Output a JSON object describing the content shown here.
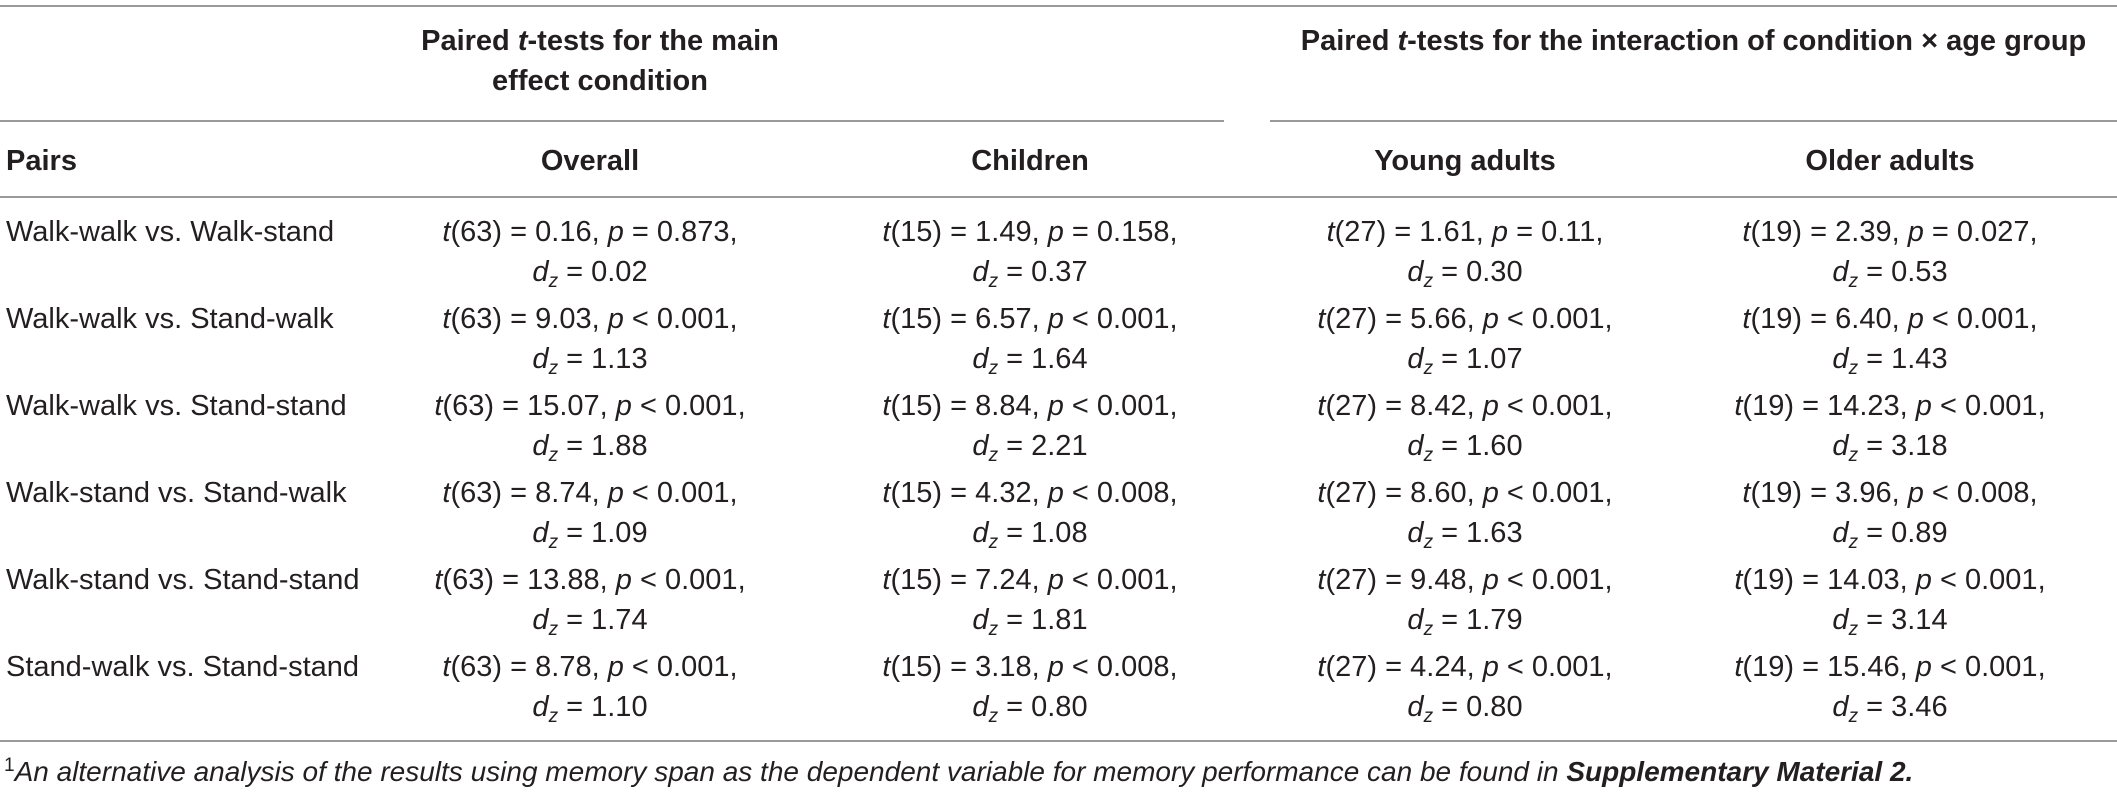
{
  "header": {
    "main_effect_title_line1": "Paired t-tests for the main",
    "main_effect_title_line2": "effect condition",
    "interaction_title": "Paired t-tests for the interaction of condition × age group"
  },
  "columns": {
    "pairs": "Pairs",
    "overall": "Overall",
    "children": "Children",
    "young": "Young adults",
    "older": "Older adults"
  },
  "rows": [
    {
      "pair": "Walk-walk vs. Walk-stand",
      "overall": {
        "df": "63",
        "t": "0.16",
        "p_op": "=",
        "p": "0.873",
        "dz": "0.02"
      },
      "children": {
        "df": "15",
        "t": "1.49",
        "p_op": "=",
        "p": "0.158",
        "dz": "0.37"
      },
      "young": {
        "df": "27",
        "t": "1.61",
        "p_op": "=",
        "p": "0.11",
        "dz": "0.30"
      },
      "older": {
        "df": "19",
        "t": "2.39",
        "p_op": "=",
        "p": "0.027",
        "dz": "0.53"
      }
    },
    {
      "pair": "Walk-walk vs. Stand-walk",
      "overall": {
        "df": "63",
        "t": "9.03",
        "p_op": "<",
        "p": "0.001",
        "dz": "1.13"
      },
      "children": {
        "df": "15",
        "t": "6.57",
        "p_op": "<",
        "p": "0.001",
        "dz": "1.64"
      },
      "young": {
        "df": "27",
        "t": "5.66",
        "p_op": "<",
        "p": "0.001",
        "dz": "1.07"
      },
      "older": {
        "df": "19",
        "t": "6.40",
        "p_op": "<",
        "p": "0.001",
        "dz": "1.43"
      }
    },
    {
      "pair": "Walk-walk vs. Stand-stand",
      "overall": {
        "df": "63",
        "t": "15.07",
        "p_op": "<",
        "p": "0.001",
        "dz": "1.88"
      },
      "children": {
        "df": "15",
        "t": "8.84",
        "p_op": "<",
        "p": "0.001",
        "dz": "2.21"
      },
      "young": {
        "df": "27",
        "t": "8.42",
        "p_op": "<",
        "p": "0.001",
        "dz": "1.60"
      },
      "older": {
        "df": "19",
        "t": "14.23",
        "p_op": "<",
        "p": "0.001",
        "dz": "3.18"
      }
    },
    {
      "pair": "Walk-stand vs. Stand-walk",
      "overall": {
        "df": "63",
        "t": "8.74",
        "p_op": "<",
        "p": "0.001",
        "dz": "1.09"
      },
      "children": {
        "df": "15",
        "t": "4.32",
        "p_op": "<",
        "p": "0.008",
        "dz": "1.08"
      },
      "young": {
        "df": "27",
        "t": "8.60",
        "p_op": "<",
        "p": "0.001",
        "dz": "1.63"
      },
      "older": {
        "df": "19",
        "t": "3.96",
        "p_op": "<",
        "p": "0.008",
        "dz": "0.89"
      }
    },
    {
      "pair": "Walk-stand vs. Stand-stand",
      "overall": {
        "df": "63",
        "t": "13.88",
        "p_op": "<",
        "p": "0.001",
        "dz": "1.74"
      },
      "children": {
        "df": "15",
        "t": "7.24",
        "p_op": "<",
        "p": "0.001",
        "dz": "1.81"
      },
      "young": {
        "df": "27",
        "t": "9.48",
        "p_op": "<",
        "p": "0.001",
        "dz": "1.79"
      },
      "older": {
        "df": "19",
        "t": "14.03",
        "p_op": "<",
        "p": "0.001",
        "dz": "3.14"
      }
    },
    {
      "pair": "Stand-walk vs. Stand-stand",
      "overall": {
        "df": "63",
        "t": "8.78",
        "p_op": "<",
        "p": "0.001",
        "dz": "1.10"
      },
      "children": {
        "df": "15",
        "t": "3.18",
        "p_op": "<",
        "p": "0.008",
        "dz": "0.80"
      },
      "young": {
        "df": "27",
        "t": "4.24",
        "p_op": "<",
        "p": "0.001",
        "dz": "0.80"
      },
      "older": {
        "df": "19",
        "t": "15.46",
        "p_op": "<",
        "p": "0.001",
        "dz": "3.46"
      }
    }
  ],
  "footnote": {
    "marker": "1",
    "text": "An alternative analysis of the results using memory span as the dependent variable for memory performance can be found in ",
    "ref": "Supplementary Material 2."
  }
}
